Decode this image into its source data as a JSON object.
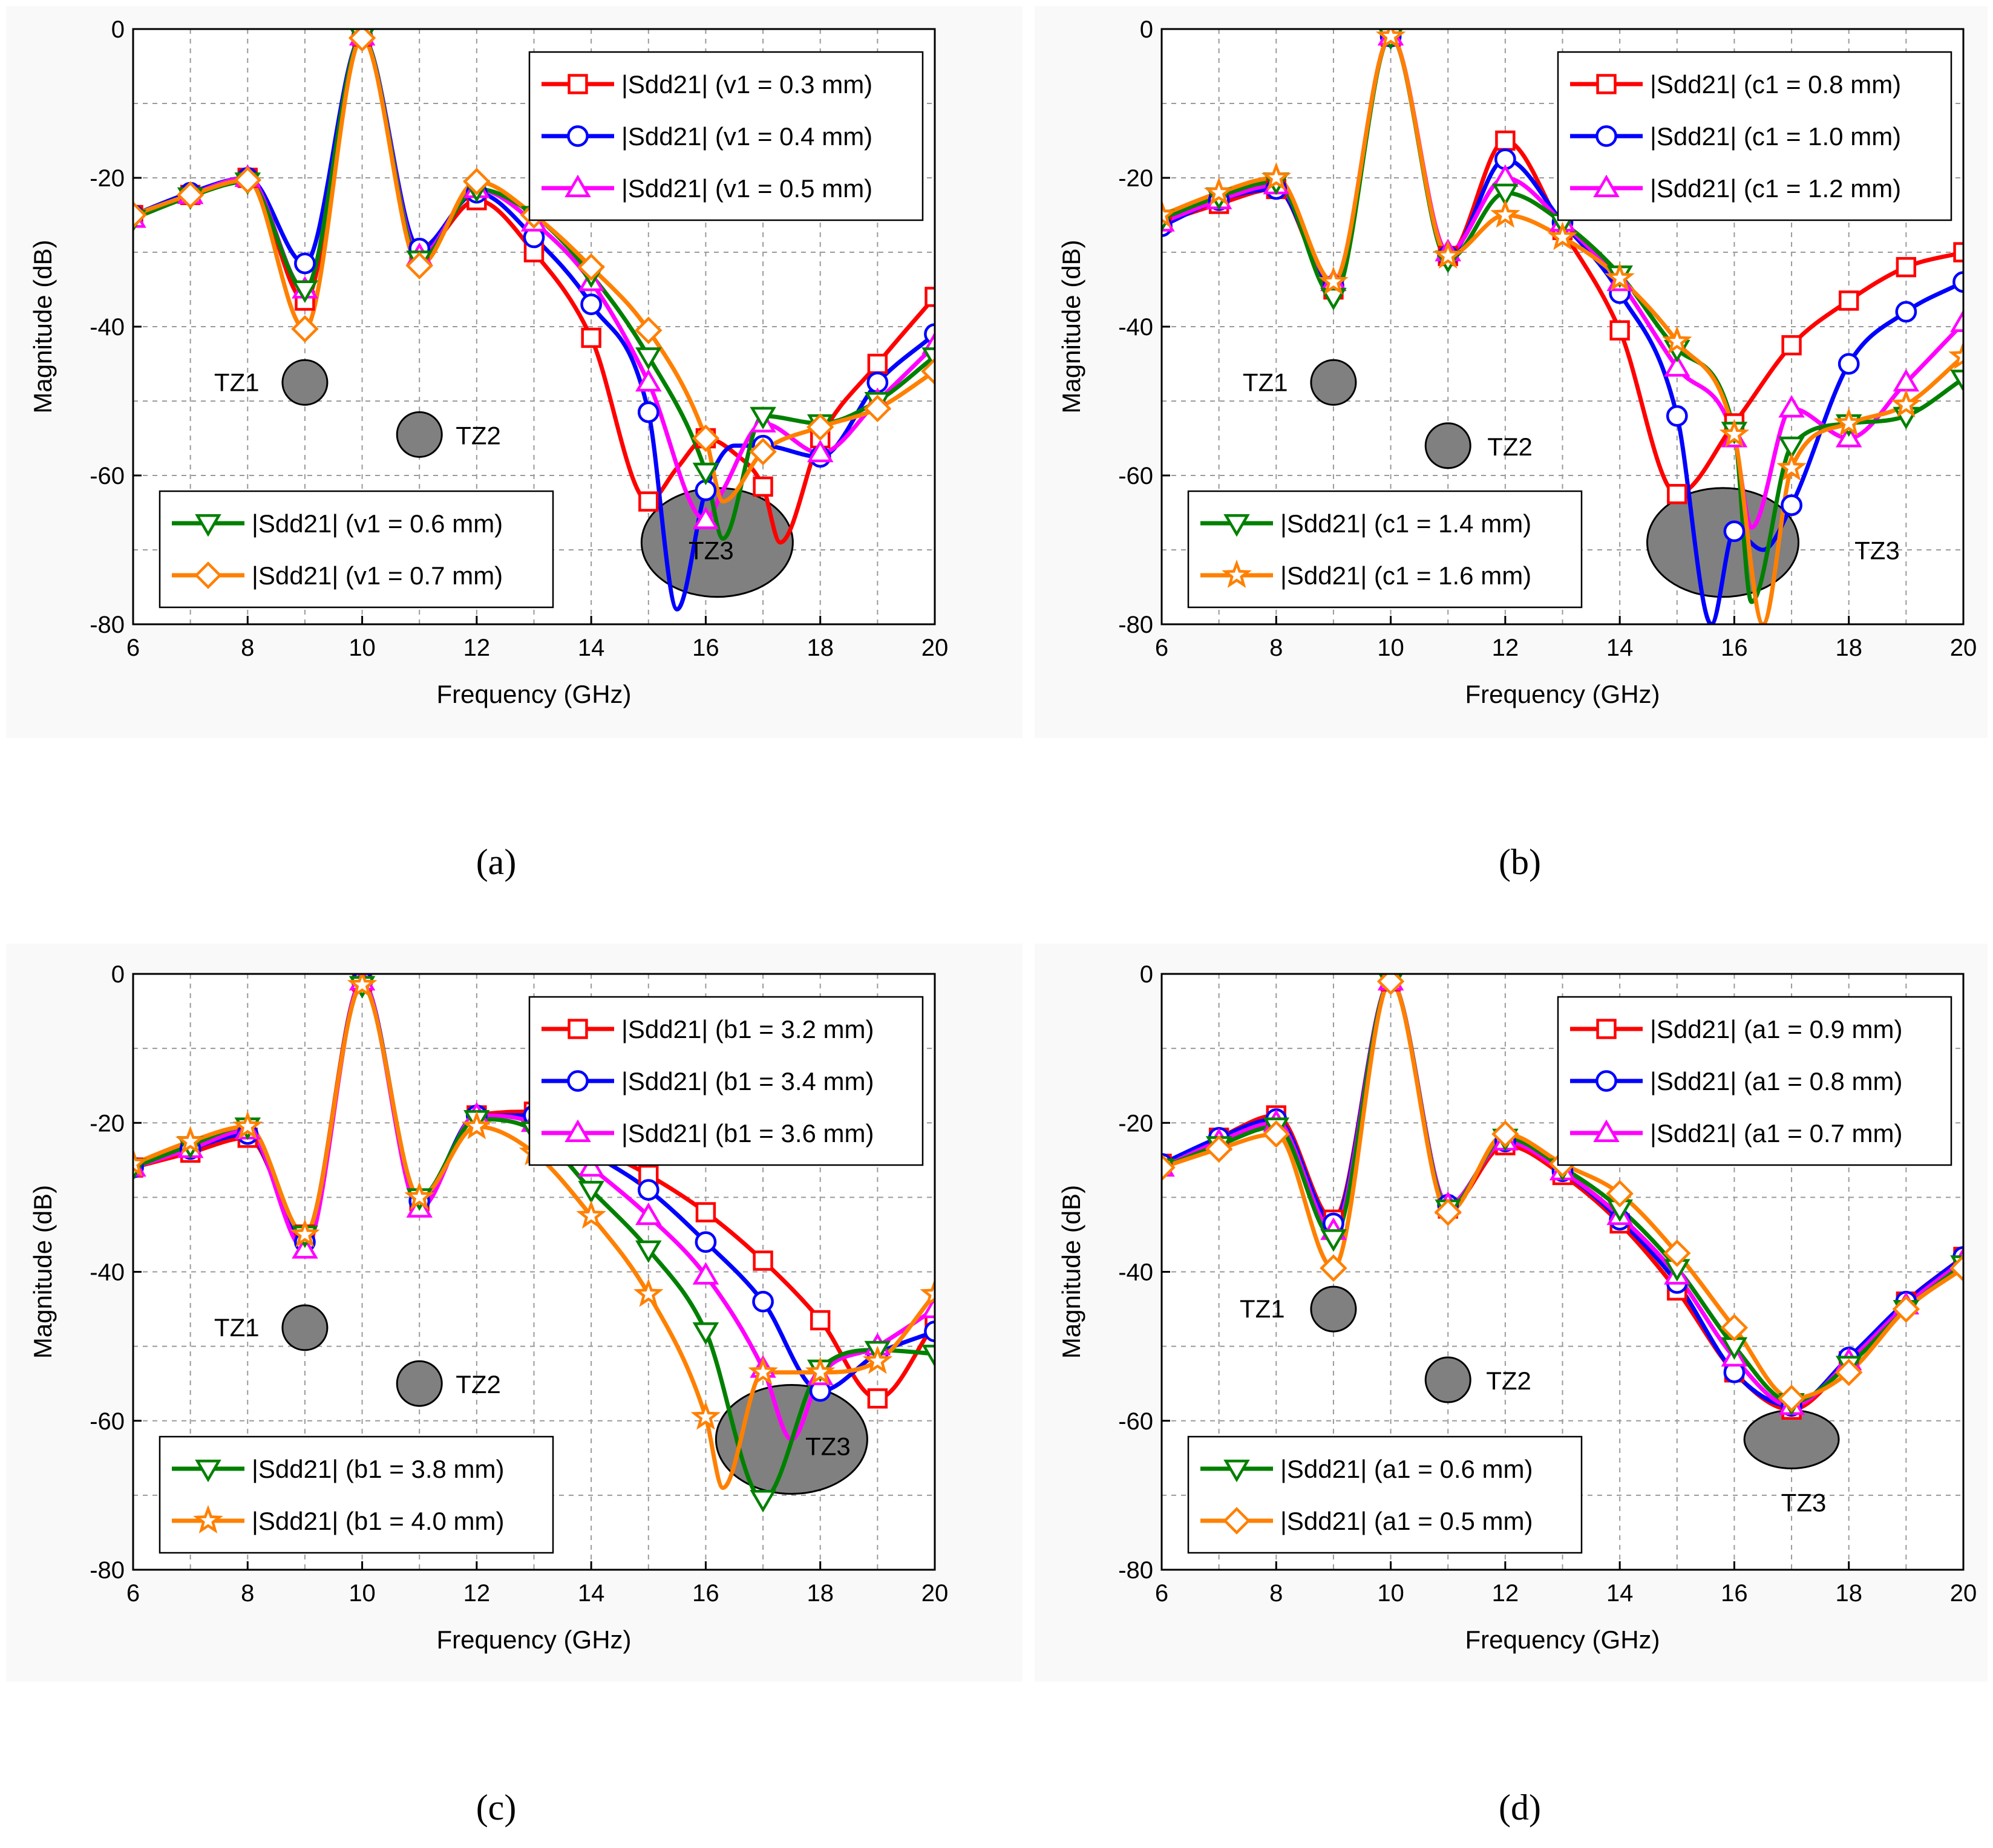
{
  "chart_data": [
    {
      "type": "line",
      "caption": "(a)",
      "xlabel": "Frequency (GHz)",
      "ylabel": "Magnitude (dB)",
      "xlim": [
        6,
        20
      ],
      "ylim": [
        -80,
        0
      ],
      "xticks": [
        6,
        8,
        10,
        12,
        14,
        16,
        18,
        20
      ],
      "yticks": [
        0,
        -20,
        -40,
        -60,
        -80
      ],
      "grid": true,
      "legend_groups": [
        {
          "position": "top-right",
          "entries": [
            0,
            1,
            2
          ]
        },
        {
          "position": "bottom-left",
          "entries": [
            3,
            4
          ]
        }
      ],
      "series": [
        {
          "name": "|Sdd21| (v1 = 0.3 mm)",
          "color": "#ff0000",
          "marker": "square",
          "x": [
            6,
            7,
            8,
            9,
            10,
            11,
            12,
            13,
            14,
            15,
            15.5,
            16,
            16.5,
            17,
            17.3,
            18,
            19,
            20
          ],
          "y": [
            -25,
            -22.3,
            -20,
            -36.5,
            -1,
            -30,
            -23,
            -30,
            -41.5,
            -63.5,
            -59,
            -55,
            -57,
            -61.5,
            -69,
            -55,
            -45,
            -36
          ]
        },
        {
          "name": "|Sdd21| (v1 = 0.4 mm)",
          "color": "#0000ff",
          "marker": "circle",
          "x": [
            6,
            7,
            8,
            9,
            10,
            11,
            12,
            13,
            14,
            15,
            15.5,
            16,
            16.5,
            17,
            18,
            19,
            20
          ],
          "y": [
            -25,
            -22,
            -20,
            -31.5,
            -1,
            -29.5,
            -22,
            -28,
            -37,
            -51.5,
            -78,
            -62,
            -56,
            -56,
            -57.5,
            -47.5,
            -41
          ]
        },
        {
          "name": "|Sdd21| (v1 = 0.5 mm)",
          "color": "#ff00ff",
          "marker": "triangle-up",
          "x": [
            6,
            7,
            8,
            9,
            10,
            11,
            12,
            13,
            14,
            15,
            16,
            16.3,
            17,
            18,
            19,
            20
          ],
          "y": [
            -25.5,
            -22.3,
            -20,
            -35,
            -1,
            -30.5,
            -21.5,
            -26,
            -34,
            -47.5,
            -66,
            -62,
            -53,
            -57,
            -50,
            -42.5
          ]
        },
        {
          "name": "|Sdd21| (v1 = 0.6 mm)",
          "color": "#008000",
          "marker": "triangle-down",
          "x": [
            6,
            7,
            8,
            9,
            10,
            11,
            12,
            13,
            14,
            15,
            16,
            16.3,
            17,
            18,
            19,
            20
          ],
          "y": [
            -25.5,
            -22.5,
            -20.5,
            -35,
            -1,
            -31,
            -21.5,
            -25,
            -33,
            -44,
            -59.5,
            -68.5,
            -52,
            -53,
            -50,
            -44
          ]
        },
        {
          "name": "|Sdd21| (v1 = 0.7 mm)",
          "color": "#ff8000",
          "marker": "diamond",
          "x": [
            6,
            7,
            8,
            9,
            10,
            11,
            12,
            13,
            14,
            15,
            16,
            16.3,
            17,
            18,
            19,
            20
          ],
          "y": [
            -25,
            -22.3,
            -20.3,
            -40.3,
            -1.2,
            -31.8,
            -20.5,
            -25,
            -32,
            -40.5,
            -55,
            -63.5,
            -56.8,
            -53.5,
            -51,
            -46
          ]
        }
      ],
      "annotations": [
        {
          "text": "TZ1",
          "x": 9,
          "y": -47.5
        },
        {
          "text": "TZ2",
          "x": 11,
          "y": -54.5
        },
        {
          "text": "TZ3",
          "x": 16.2,
          "y": -69
        }
      ]
    },
    {
      "type": "line",
      "caption": "(b)",
      "xlabel": "Frequency (GHz)",
      "ylabel": "Magnitude (dB)",
      "xlim": [
        6,
        20
      ],
      "ylim": [
        -80,
        0
      ],
      "xticks": [
        6,
        8,
        10,
        12,
        14,
        16,
        18,
        20
      ],
      "yticks": [
        0,
        -20,
        -40,
        -60,
        -80
      ],
      "grid": true,
      "legend_groups": [
        {
          "position": "top-right",
          "entries": [
            0,
            1,
            2
          ]
        },
        {
          "position": "bottom-left",
          "entries": [
            3,
            4
          ]
        }
      ],
      "series": [
        {
          "name": "|Sdd21| (c1 = 0.8 mm)",
          "color": "#ff0000",
          "marker": "square",
          "x": [
            6,
            7,
            8,
            9,
            10,
            11,
            12,
            13,
            14,
            15,
            16,
            17,
            18,
            19,
            20
          ],
          "y": [
            -26,
            -23.5,
            -21.5,
            -35,
            -1,
            -30.5,
            -15,
            -27,
            -40.5,
            -62.5,
            -53,
            -42.5,
            -36.5,
            -32,
            -30
          ]
        },
        {
          "name": "|Sdd21| (c1 = 1.0 mm)",
          "color": "#0000ff",
          "marker": "circle",
          "x": [
            6,
            7,
            8,
            9,
            10,
            11,
            12,
            13,
            14,
            15,
            15.6,
            16,
            16.5,
            17,
            18,
            19,
            20
          ],
          "y": [
            -26.5,
            -23,
            -21.5,
            -34.5,
            -1,
            -30.5,
            -17.5,
            -26,
            -35.5,
            -52,
            -80,
            -67.5,
            -70,
            -64,
            -45,
            -38,
            -34
          ]
        },
        {
          "name": "|Sdd21| (c1 = 1.2 mm)",
          "color": "#ff00ff",
          "marker": "triangle-up",
          "x": [
            6,
            7,
            8,
            9,
            10,
            11,
            12,
            13,
            14,
            15,
            16,
            16.3,
            17,
            18,
            19,
            20
          ],
          "y": [
            -26,
            -23,
            -21,
            -34,
            -1,
            -30,
            -20,
            -26,
            -34,
            -45.5,
            -55,
            -67,
            -51,
            -55,
            -47.5,
            -39.5
          ]
        },
        {
          "name": "|Sdd21| (c1 = 1.4 mm)",
          "color": "#008000",
          "marker": "triangle-down",
          "x": [
            6,
            7,
            8,
            9,
            10,
            11,
            12,
            13,
            14,
            15,
            16,
            16.3,
            17,
            18,
            19,
            20
          ],
          "y": [
            -25.5,
            -22.5,
            -20.5,
            -36,
            -1,
            -31,
            -22,
            -26,
            -33,
            -43,
            -54,
            -77,
            -56,
            -53,
            -52,
            -47
          ]
        },
        {
          "name": "|Sdd21| (c1 = 1.6 mm)",
          "color": "#ff8000",
          "marker": "star",
          "x": [
            6,
            7,
            8,
            9,
            10,
            11,
            12,
            13,
            14,
            15,
            16,
            16.5,
            17,
            18,
            19,
            20
          ],
          "y": [
            -25,
            -22,
            -20,
            -34,
            -1,
            -30.5,
            -25,
            -28,
            -33.5,
            -42,
            -54.5,
            -80,
            -59,
            -53,
            -50.5,
            -44
          ]
        }
      ],
      "annotations": [
        {
          "text": "TZ1",
          "x": 9,
          "y": -47.5
        },
        {
          "text": "TZ2",
          "x": 11,
          "y": -56
        },
        {
          "text": "TZ3",
          "x": 15.8,
          "y": -69
        }
      ]
    },
    {
      "type": "line",
      "caption": "(c)",
      "xlabel": "Frequency (GHz)",
      "ylabel": "Magnitude (dB)",
      "xlim": [
        6,
        20
      ],
      "ylim": [
        -80,
        0
      ],
      "xticks": [
        6,
        8,
        10,
        12,
        14,
        16,
        18,
        20
      ],
      "yticks": [
        0,
        -20,
        -40,
        -60,
        -80
      ],
      "grid": true,
      "legend_groups": [
        {
          "position": "top-right",
          "entries": [
            0,
            1,
            2
          ]
        },
        {
          "position": "bottom-left",
          "entries": [
            3,
            4
          ]
        }
      ],
      "series": [
        {
          "name": "|Sdd21| (b1 = 3.2 mm)",
          "color": "#ff0000",
          "marker": "square",
          "x": [
            6,
            7,
            8,
            9,
            10,
            11,
            12,
            13,
            14,
            15,
            16,
            17,
            18,
            19,
            20
          ],
          "y": [
            -26,
            -24,
            -22,
            -35,
            -1,
            -30.5,
            -19,
            -18.5,
            -23,
            -27,
            -32,
            -38.5,
            -46.5,
            -57,
            -47
          ]
        },
        {
          "name": "|Sdd21| (b1 = 3.4 mm)",
          "color": "#0000ff",
          "marker": "circle",
          "x": [
            6,
            7,
            8,
            9,
            10,
            11,
            12,
            13,
            14,
            15,
            16,
            17,
            18,
            19,
            20
          ],
          "y": [
            -26,
            -23.5,
            -21.5,
            -36,
            -1,
            -30.5,
            -19,
            -19,
            -24,
            -29,
            -36,
            -44,
            -56,
            -51,
            -48
          ]
        },
        {
          "name": "|Sdd21| (b1 = 3.6 mm)",
          "color": "#ff00ff",
          "marker": "triangle-up",
          "x": [
            6,
            7,
            8,
            9,
            10,
            11,
            12,
            13,
            14,
            15,
            16,
            17,
            17.5,
            18,
            19,
            20
          ],
          "y": [
            -26,
            -23.5,
            -21,
            -37,
            -1,
            -31.5,
            -19,
            -20,
            -26,
            -32.5,
            -40.5,
            -53,
            -62.5,
            -54,
            -50,
            -45
          ]
        },
        {
          "name": "|Sdd21| (b1 = 3.8 mm)",
          "color": "#008000",
          "marker": "triangle-down",
          "x": [
            6,
            7,
            8,
            9,
            10,
            11,
            12,
            13,
            14,
            15,
            16,
            17,
            18,
            19,
            20
          ],
          "y": [
            -26,
            -23,
            -20.5,
            -35,
            -1.5,
            -30,
            -19.5,
            -21,
            -29,
            -37,
            -48,
            -70.5,
            -53,
            -50.5,
            -51
          ]
        },
        {
          "name": "|Sdd21| (b1 = 4.0 mm)",
          "color": "#ff8000",
          "marker": "star",
          "x": [
            6,
            7,
            8,
            9,
            10,
            11,
            12,
            13,
            14,
            15,
            16,
            16.3,
            17,
            18,
            19,
            20
          ],
          "y": [
            -25.5,
            -22.5,
            -20.5,
            -35,
            -1.5,
            -30,
            -20.5,
            -24,
            -32.5,
            -43,
            -59.5,
            -69,
            -53.5,
            -53.5,
            -52,
            -43
          ]
        }
      ],
      "annotations": [
        {
          "text": "TZ1",
          "x": 9,
          "y": -47.5
        },
        {
          "text": "TZ2",
          "x": 11,
          "y": -55
        },
        {
          "text": "TZ3",
          "x": 17.5,
          "y": -62.5
        }
      ]
    },
    {
      "type": "line",
      "caption": "(d)",
      "xlabel": "Frequency (GHz)",
      "ylabel": "Magnitude (dB)",
      "xlim": [
        6,
        20
      ],
      "ylim": [
        -80,
        0
      ],
      "xticks": [
        6,
        8,
        10,
        12,
        14,
        16,
        18,
        20
      ],
      "yticks": [
        0,
        -20,
        -40,
        -60,
        -80
      ],
      "grid": true,
      "legend_groups": [
        {
          "position": "top-right",
          "entries": [
            0,
            1,
            2
          ]
        },
        {
          "position": "bottom-left",
          "entries": [
            3,
            4
          ]
        }
      ],
      "series": [
        {
          "name": "|Sdd21| (a1 = 0.9 mm)",
          "color": "#ff0000",
          "marker": "square",
          "x": [
            6,
            7,
            8,
            9,
            10,
            11,
            12,
            13,
            14,
            15,
            16,
            17,
            18,
            19,
            20
          ],
          "y": [
            -25.5,
            -22,
            -19,
            -33,
            -1,
            -31.5,
            -23,
            -27,
            -33.5,
            -42.5,
            -53.5,
            -58.5,
            -52,
            -44,
            -38
          ]
        },
        {
          "name": "|Sdd21| (a1 = 0.8 mm)",
          "color": "#0000ff",
          "marker": "circle",
          "x": [
            6,
            7,
            8,
            9,
            10,
            11,
            12,
            13,
            14,
            15,
            16,
            17,
            18,
            19,
            20
          ],
          "y": [
            -25.5,
            -22,
            -19.5,
            -33.5,
            -1,
            -31,
            -22.5,
            -26.5,
            -33,
            -41.5,
            -53.5,
            -58,
            -51.5,
            -44,
            -38
          ]
        },
        {
          "name": "|Sdd21| (a1 = 0.7 mm)",
          "color": "#ff00ff",
          "marker": "triangle-up",
          "x": [
            6,
            7,
            8,
            9,
            10,
            11,
            12,
            13,
            14,
            15,
            16,
            17,
            18,
            19,
            20
          ],
          "y": [
            -26,
            -22.5,
            -20,
            -34.5,
            -1,
            -31,
            -22.5,
            -26.5,
            -32.5,
            -40.5,
            -51.5,
            -58,
            -52,
            -44.5,
            -38.5
          ]
        },
        {
          "name": "|Sdd21| (a1 = 0.6 mm)",
          "color": "#008000",
          "marker": "triangle-down",
          "x": [
            6,
            7,
            8,
            9,
            10,
            11,
            12,
            13,
            14,
            15,
            16,
            17,
            18,
            19,
            20
          ],
          "y": [
            -26,
            -23,
            -20.5,
            -35.5,
            -1,
            -31.5,
            -22,
            -26,
            -31.5,
            -39.5,
            -50,
            -57.5,
            -52.5,
            -45,
            -39
          ]
        },
        {
          "name": "|Sdd21| (a1 = 0.5 mm)",
          "color": "#ff8000",
          "marker": "diamond",
          "x": [
            6,
            7,
            8,
            9,
            10,
            11,
            12,
            13,
            14,
            15,
            16,
            17,
            18,
            19,
            20
          ],
          "y": [
            -26,
            -23.5,
            -21.5,
            -39.5,
            -1,
            -32,
            -21.5,
            -25.5,
            -29.5,
            -37.5,
            -47.5,
            -57,
            -53.5,
            -45,
            -39.5
          ]
        }
      ],
      "annotations": [
        {
          "text": "TZ1",
          "x": 9,
          "y": -45
        },
        {
          "text": "TZ2",
          "x": 11,
          "y": -54.5
        },
        {
          "text": "TZ3",
          "x": 17,
          "y": -62.5
        }
      ]
    }
  ]
}
